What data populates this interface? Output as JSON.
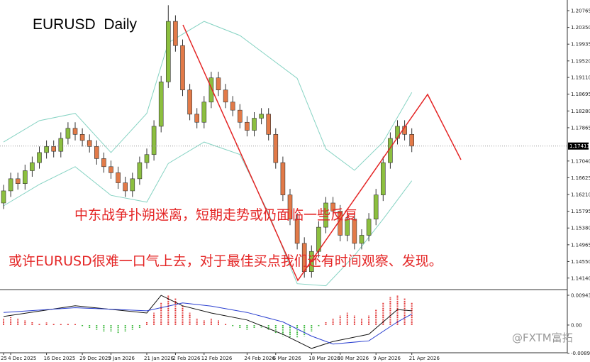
{
  "chart_data": {
    "type": "candlestick",
    "title": "EURUSD  Daily",
    "annotations": [
      "中东战争扑朔迷离，短期走势或仍面临一些反复",
      "或许EURUSD很难一口气上去，对于最佳买点我们还有时间观察、发现。"
    ],
    "watermark": "@FXTM富拓",
    "categories": [
      "25",
      "4 Dec 2025",
      null,
      null,
      null,
      null,
      "16 Dec 2025",
      null,
      null,
      null,
      null,
      "29 Dec 2025",
      null,
      null,
      null,
      "9 Jan 2026",
      null,
      null,
      null,
      null,
      "21 Jan 2026",
      null,
      null,
      null,
      "2 Feb 2026",
      null,
      null,
      null,
      "12 Feb 2026",
      null,
      null,
      null,
      null,
      null,
      "24 Feb 2026",
      null,
      null,
      null,
      "6 Mar 2026",
      null,
      null,
      null,
      null,
      "18 Mar 2026",
      null,
      null,
      null,
      "30 Mar 2026",
      null,
      null,
      null,
      null,
      "9 Apr 2026",
      null,
      null,
      null,
      null,
      "21 Apr 2026"
    ],
    "open": [
      1.16,
      1.163,
      1.166,
      1.1648,
      1.168,
      1.17,
      1.1725,
      1.174,
      1.1728,
      1.176,
      1.1785,
      1.177,
      1.1755,
      1.174,
      1.171,
      1.169,
      1.1675,
      1.165,
      1.163,
      1.166,
      1.17,
      1.172,
      1.179,
      1.19,
      1.205,
      1.199,
      1.188,
      1.182,
      1.18,
      1.185,
      1.191,
      1.188,
      1.185,
      1.183,
      1.18,
      1.178,
      1.181,
      1.182,
      1.177,
      1.17,
      1.162,
      1.156,
      1.15,
      1.143,
      1.148,
      1.154,
      1.16,
      1.158,
      1.152,
      1.156,
      1.15,
      1.152,
      1.156,
      1.162,
      1.17,
      1.176,
      1.179,
      1.177
    ],
    "high": [
      1.1645,
      1.1675,
      1.1675,
      1.1695,
      1.1715,
      1.174,
      1.1755,
      1.1755,
      1.1775,
      1.18,
      1.18,
      1.1785,
      1.177,
      1.1755,
      1.1725,
      1.1705,
      1.169,
      1.1665,
      1.1675,
      1.1715,
      1.1735,
      1.1805,
      1.1915,
      1.209,
      1.2065,
      1.2005,
      1.1895,
      1.1835,
      1.1865,
      1.1925,
      1.1925,
      1.1895,
      1.1865,
      1.1845,
      1.1815,
      1.1825,
      1.1835,
      1.1835,
      1.1785,
      1.1715,
      1.1635,
      1.1575,
      1.1515,
      1.1495,
      1.1555,
      1.1615,
      1.1615,
      1.1595,
      1.1575,
      1.1575,
      1.1535,
      1.1575,
      1.1635,
      1.1715,
      1.1775,
      1.1805,
      1.1805,
      1.1785
    ],
    "low": [
      1.1585,
      1.1615,
      1.1633,
      1.1633,
      1.1665,
      1.1685,
      1.171,
      1.1713,
      1.1713,
      1.1745,
      1.1755,
      1.174,
      1.1725,
      1.1695,
      1.1675,
      1.166,
      1.1635,
      1.1615,
      1.1615,
      1.1645,
      1.1685,
      1.1705,
      1.1775,
      1.1885,
      1.1975,
      1.1865,
      1.1805,
      1.1785,
      1.1785,
      1.1835,
      1.1865,
      1.1835,
      1.1815,
      1.1785,
      1.1765,
      1.1765,
      1.1795,
      1.1755,
      1.1685,
      1.1605,
      1.1545,
      1.1485,
      1.1415,
      1.1415,
      1.1465,
      1.1525,
      1.1565,
      1.1505,
      1.1505,
      1.1485,
      1.1485,
      1.1505,
      1.1545,
      1.1605,
      1.1685,
      1.1745,
      1.1755,
      1.1726
    ],
    "close": [
      1.163,
      1.166,
      1.1648,
      1.168,
      1.17,
      1.1725,
      1.174,
      1.1728,
      1.176,
      1.1785,
      1.177,
      1.1755,
      1.174,
      1.171,
      1.169,
      1.1675,
      1.165,
      1.163,
      1.166,
      1.17,
      1.172,
      1.179,
      1.19,
      1.205,
      1.199,
      1.188,
      1.182,
      1.18,
      1.185,
      1.191,
      1.188,
      1.185,
      1.183,
      1.18,
      1.178,
      1.181,
      1.182,
      1.177,
      1.17,
      1.162,
      1.156,
      1.15,
      1.143,
      1.148,
      1.154,
      1.16,
      1.158,
      1.152,
      1.156,
      1.15,
      1.152,
      1.156,
      1.162,
      1.17,
      1.176,
      1.179,
      1.177,
      1.1741
    ],
    "up_color": "#8cbf3f",
    "down_color": "#e27a48",
    "ylim": [
      1.13907,
      1.21029
    ],
    "yticks": [
      1.20765,
      {
        "value": 1.2035,
        "label": "1.20350"
      },
      1.19935,
      {
        "value": 1.1952,
        "label": "1.19520"
      },
      {
        "value": 1.1911,
        "label": "1.19110"
      },
      1.18695,
      {
        "value": 1.1828,
        "label": "1.18280"
      },
      1.17865,
      {
        "value": 1.1704,
        "label": "1.17040"
      },
      1.16625,
      {
        "value": 1.1621,
        "label": "1.16210"
      },
      1.15795,
      {
        "value": 1.1538,
        "label": "1.15380"
      },
      1.14965,
      {
        "value": 1.1455,
        "label": "1.14550"
      },
      {
        "value": 1.1414,
        "label": "1.14140"
      }
    ],
    "current_price": 1.17411,
    "bands": {
      "color": "#86d3c3",
      "x": [
        0,
        5,
        10,
        15,
        20,
        23,
        28,
        33,
        37,
        41,
        45,
        49,
        53,
        57
      ],
      "upper": [
        1.1751,
        1.1804,
        1.1822,
        1.1725,
        1.1822,
        1.1997,
        1.205,
        1.2015,
        1.1962,
        1.1909,
        1.1734,
        1.1681,
        1.1751,
        1.1874
      ],
      "lower": [
        1.1593,
        1.1646,
        1.169,
        1.1619,
        1.1602,
        1.1698,
        1.1751,
        1.172,
        1.1575,
        1.14,
        1.1395,
        1.147,
        1.156,
        1.1655
      ]
    },
    "indicator": {
      "ylim": [
        -0.0081,
        0.011
      ],
      "yticks": [
        0.0094329,
        {
          "value": 0,
          "label": "0.00"
        },
        -0.008917
      ],
      "pos_color": "#e03030",
      "neg_color": "#3cb83c",
      "histogram": [
        0.002,
        0.0025,
        0.002,
        0.0015,
        0.001,
        0.0005,
        0.0008,
        0.0005,
        0.0003,
        0.0005,
        0.0003,
        -0.0005,
        -0.001,
        -0.0015,
        -0.002,
        -0.002,
        -0.0025,
        -0.002,
        -0.0015,
        -0.001,
        0.001,
        0.004,
        0.007,
        0.0095,
        0.0085,
        0.006,
        0.004,
        0.002,
        0.0015,
        0.002,
        0.0015,
        0.0005,
        -0.0005,
        -0.001,
        -0.0015,
        -0.001,
        -0.0008,
        -0.0015,
        -0.0025,
        -0.0035,
        -0.004,
        -0.004,
        -0.0035,
        -0.002,
        -0.0005,
        0.001,
        0.002,
        0.003,
        0.004,
        0.003,
        0.002,
        0.003,
        0.005,
        0.007,
        0.009,
        0.0095,
        0.0085,
        0.007
      ],
      "lines": [
        {
          "color": "#111111",
          "x": [
            0,
            10,
            20,
            22,
            25,
            29,
            34,
            39,
            43,
            46,
            51,
            55,
            57
          ],
          "values": [
            0.0027,
            0.0061,
            0.0038,
            0.0094,
            0.0061,
            0.0038,
            0.0016,
            -0.0029,
            -0.0074,
            -0.0052,
            -0.0029,
            0.0049,
            0.0045
          ]
        },
        {
          "color": "#2a3fd0",
          "x": [
            0,
            10,
            20,
            25,
            29,
            34,
            39,
            43,
            46,
            51,
            55,
            57
          ],
          "values": [
            0.004,
            0.0055,
            0.0045,
            0.007,
            0.006,
            0.004,
            0.001,
            -0.0035,
            -0.006,
            -0.005,
            0.001,
            0.0035
          ]
        }
      ]
    }
  }
}
